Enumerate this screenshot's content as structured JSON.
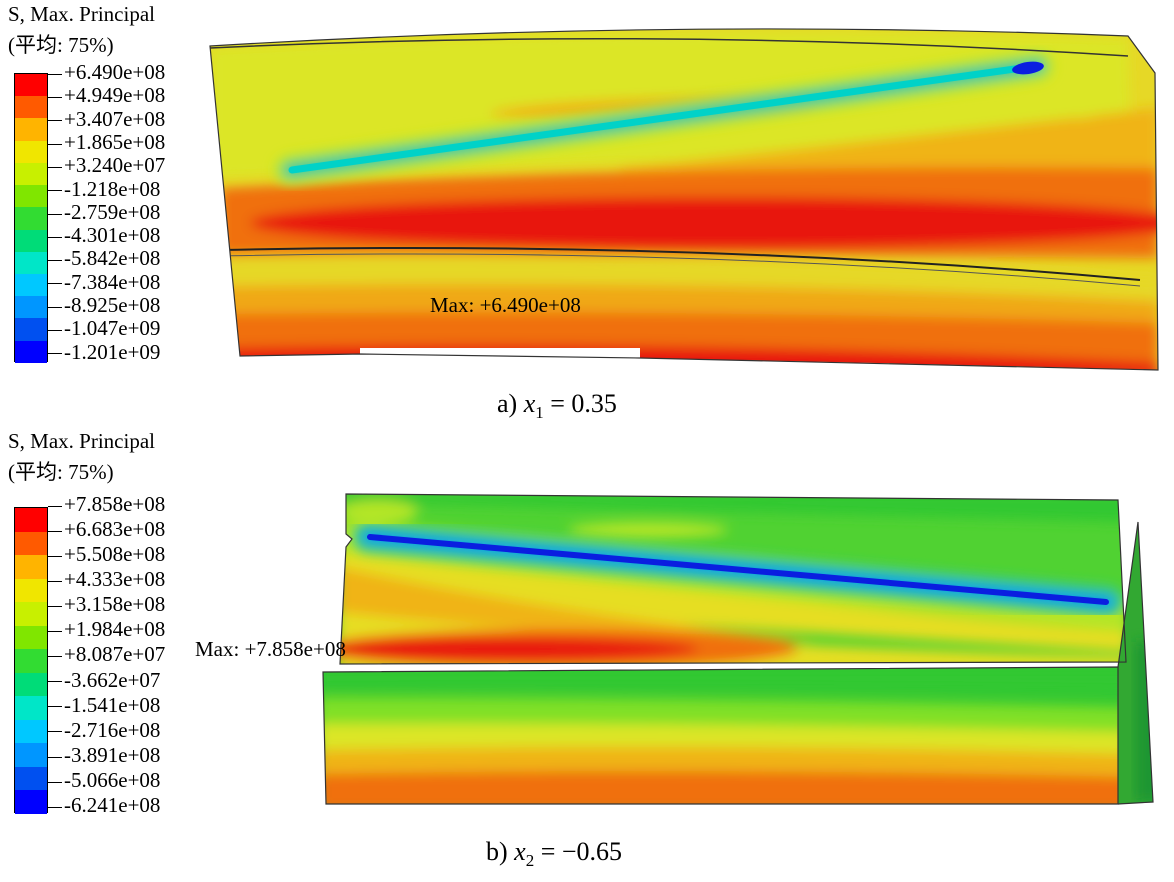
{
  "colors": {
    "scale": [
      "#ff0000",
      "#ff5a00",
      "#ffb400",
      "#f0e600",
      "#c8f000",
      "#80e600",
      "#32dc32",
      "#00dc78",
      "#00e6c8",
      "#00c8ff",
      "#0096ff",
      "#0050f0",
      "#0000ff"
    ],
    "red": "#e8150c",
    "orange": "#f07010",
    "amber": "#f0a818",
    "yellow": "#e6de20",
    "lime": "#b4e628",
    "green": "#32c832",
    "cyan": "#00d2c8",
    "blue": "#0a1ee0"
  },
  "panel_a": {
    "legend_title": "S, Max. Principal",
    "legend_avg": "(平均: 75%)",
    "ticks": [
      "+6.490e+08",
      "+4.949e+08",
      "+3.407e+08",
      "+1.865e+08",
      "+3.240e+07",
      "-1.218e+08",
      "-2.759e+08",
      "-4.301e+08",
      "-5.842e+08",
      "-7.384e+08",
      "-8.925e+08",
      "-1.047e+09",
      "-1.201e+09"
    ],
    "max_label": "Max: +6.490e+08",
    "caption_prefix": "a)",
    "caption_var": "x",
    "caption_sub": "1",
    "caption_eq": " = 0.35"
  },
  "panel_b": {
    "legend_title": "S, Max. Principal",
    "legend_avg": "(平均: 75%)",
    "ticks": [
      "+7.858e+08",
      "+6.683e+08",
      "+5.508e+08",
      "+4.333e+08",
      "+3.158e+08",
      "+1.984e+08",
      "+8.087e+07",
      "-3.662e+07",
      "-1.541e+08",
      "-2.716e+08",
      "-3.891e+08",
      "-5.066e+08",
      "-6.241e+08"
    ],
    "max_label": "Max: +7.858e+08",
    "caption_prefix": "b)",
    "caption_var": "x",
    "caption_sub": "2",
    "caption_eq": " = −0.65"
  }
}
